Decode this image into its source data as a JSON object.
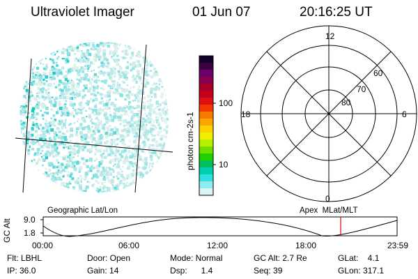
{
  "header": {
    "instrument": "Ultraviolet Imager",
    "date": "01 Jun 07",
    "time": "20:16:25 UT"
  },
  "colorbar": {
    "unit_label": "photon cm-2s-1",
    "ticks": [
      "100",
      "10"
    ],
    "colors": [
      "#11002a",
      "#3a0042",
      "#6a0068",
      "#8a0050",
      "#a8002a",
      "#c4001a",
      "#e01010",
      "#f23a00",
      "#f77a00",
      "#fba600",
      "#fdd000",
      "#f0ee00",
      "#b8ee00",
      "#6ee000",
      "#22d000",
      "#00c060",
      "#00d0b0",
      "#30e0e0",
      "#90ecec",
      "#d8f4f4"
    ]
  },
  "polar_plot": {
    "labels": {
      "top": "12",
      "left": "18",
      "right": "6",
      "bottom": "0",
      "ring60": "60",
      "ring70": "70",
      "ring80": "80"
    }
  },
  "timeline": {
    "ylabel": "GC Alt",
    "y_ticks": [
      "9.0",
      "1.8"
    ],
    "left_title": "Geographic Lat/Lon",
    "right_title": "Apex  MLat/MLT",
    "x_ticks": [
      "00:00",
      "06:00",
      "12:00",
      "18:00",
      "23:59"
    ],
    "marker_color": "#e00000"
  },
  "info": {
    "row1": {
      "filter": "Flt: LBHL",
      "door": "Door: Open",
      "mode": "Mode: Normal",
      "gcalt": "GC Alt: 2.7 Re",
      "glat": "GLat:    4.1"
    },
    "row2": {
      "ip": "IP: 36.0",
      "gain": "Gain: 14",
      "dsp": "Dsp:      1.4",
      "seq": "Seq: 39",
      "glon": "GLon: 317.1"
    }
  }
}
